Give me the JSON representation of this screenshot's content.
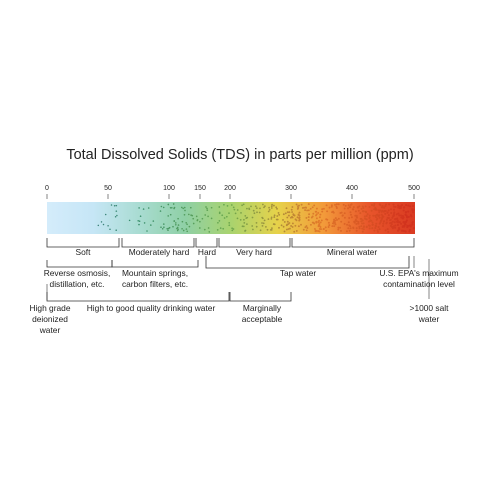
{
  "title": "Total Dissolved Solids (TDS) in parts per million (ppm)",
  "scale": {
    "min": 0,
    "max": 500,
    "ticks": [
      {
        "value": 0,
        "label": "0"
      },
      {
        "value": 50,
        "label": "50"
      },
      {
        "value": 100,
        "label": "100"
      },
      {
        "value": 150,
        "label": "150"
      },
      {
        "value": 200,
        "label": "200"
      },
      {
        "value": 300,
        "label": "300"
      },
      {
        "value": 400,
        "label": "400"
      },
      {
        "value": 500,
        "label": "500"
      }
    ]
  },
  "gradient_colors": [
    "#d4ecfb",
    "#c6e6f6",
    "#a9dcd2",
    "#8fd0a6",
    "#a9d36e",
    "#e6d24a",
    "#f29b3a",
    "#e8552b",
    "#d93a22"
  ],
  "dot_color_range": [
    "#3c6f8a",
    "#3a8f6e",
    "#6aa84f",
    "#e07a2a",
    "#d2321e"
  ],
  "hardness": {
    "soft": "Soft",
    "moderately_hard": "Moderately hard",
    "hard": "Hard",
    "very_hard": "Very hard",
    "mineral_water": "Mineral water"
  },
  "sources": {
    "reverse_osmosis": [
      "Reverse osmosis,",
      "distillation, etc."
    ],
    "mountain_springs": [
      "Mountain springs,",
      "carbon filters, etc."
    ],
    "tap_water": "Tap water",
    "epa": [
      "U.S. EPA's maximum",
      "contamination level"
    ]
  },
  "quality": {
    "deionized": [
      "High grade",
      "deionized",
      "water"
    ],
    "drinking": "High to good quality drinking water",
    "marginal": [
      "Marginally",
      "acceptable"
    ],
    "salt": [
      ">1000 salt",
      "water"
    ]
  }
}
